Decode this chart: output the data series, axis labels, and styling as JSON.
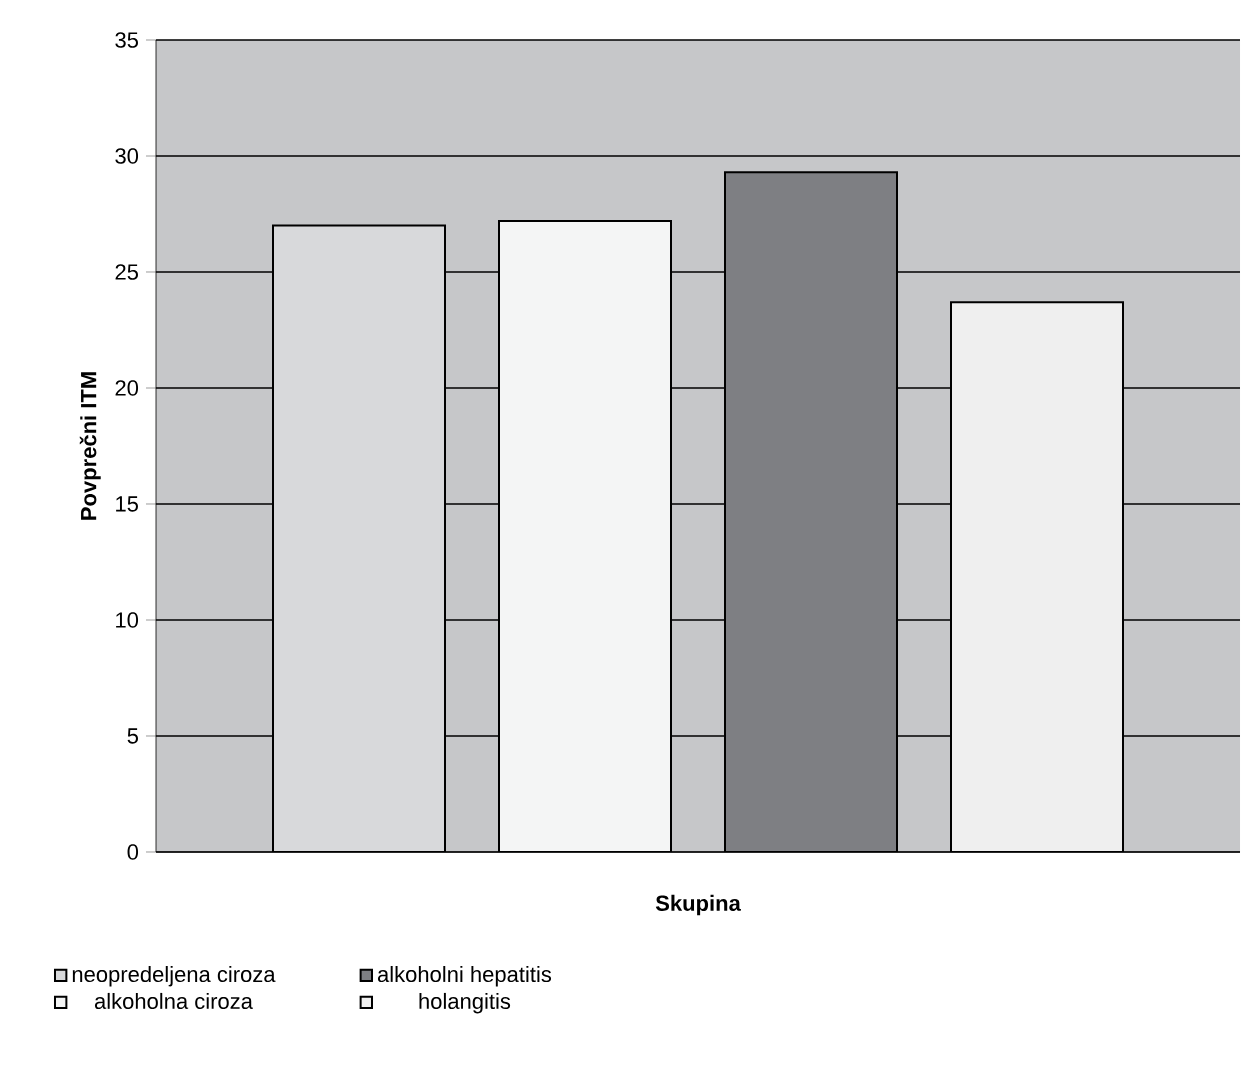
{
  "chart_data": {
    "type": "bar",
    "xlabel": "Skupina",
    "ylabel": "Povprečni ITM",
    "categories": [
      null
    ],
    "series": [
      {
        "name": "neopredeljena ciroza",
        "color": "#d8d9db",
        "values": [
          27.0
        ]
      },
      {
        "name": "alkoholna ciroza",
        "color": "#f4f5f5",
        "values": [
          27.2
        ]
      },
      {
        "name": "alkoholni hepatitis",
        "color": "#7e7f83",
        "values": [
          29.3
        ]
      },
      {
        "name": "holangitis",
        "color": "#efefef",
        "values": [
          23.7
        ]
      }
    ],
    "ylim": [
      0,
      35
    ],
    "yticks": [
      0,
      5,
      10,
      15,
      20,
      25,
      30,
      35
    ],
    "grid": "y",
    "legend": "bottom"
  }
}
